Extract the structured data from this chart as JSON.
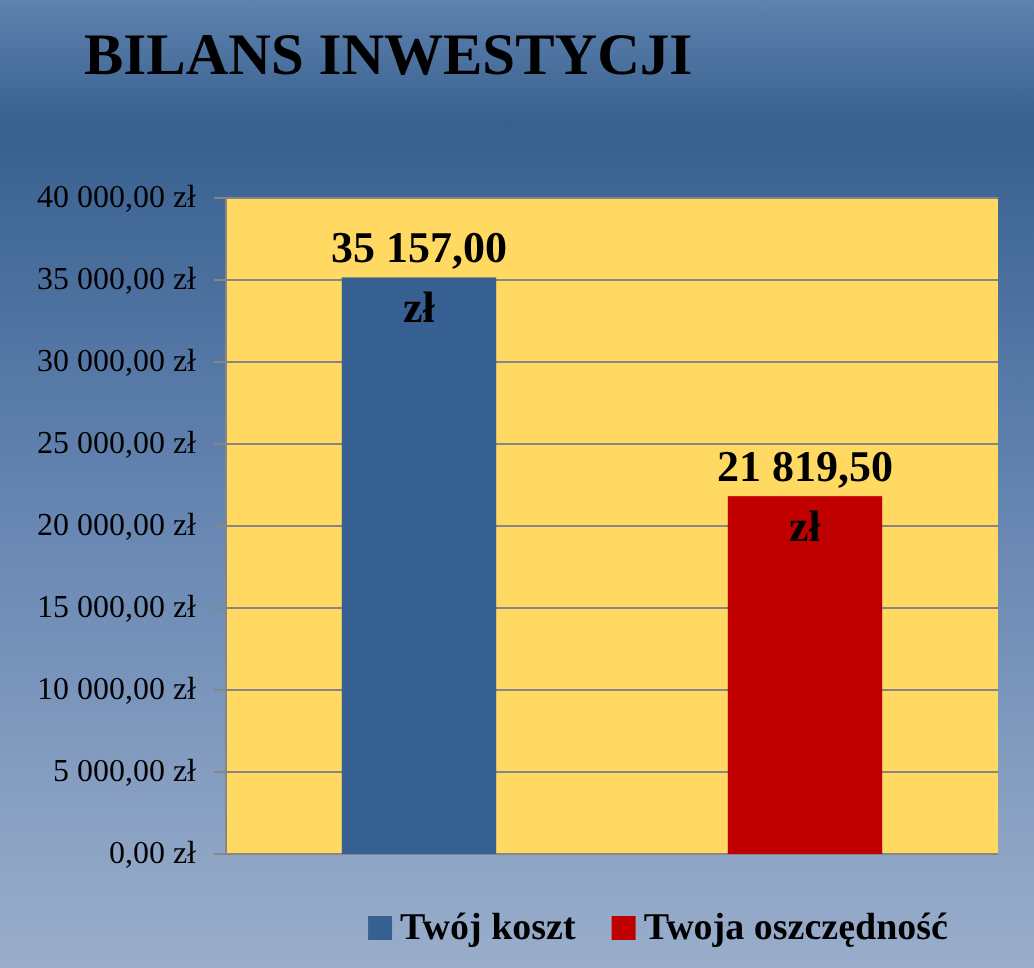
{
  "chart_data": {
    "type": "bar",
    "title": "BILANS INWESTYCJI",
    "categories": [
      null,
      null
    ],
    "series": [
      {
        "name": "Twój koszt",
        "color": "#376092",
        "values": [
          35157,
          null
        ],
        "value_labels": [
          "35 157,00 zł",
          null
        ]
      },
      {
        "name": "Twoja oszczędność",
        "color": "#c00000",
        "values": [
          null,
          21819.5
        ],
        "value_labels": [
          null,
          "21 819,50 zł"
        ]
      }
    ],
    "ylim": [
      0,
      40000
    ],
    "yticks": [
      {
        "value": 0,
        "label": "0,00 zł"
      },
      {
        "value": 5000,
        "label": "5 000,00 zł"
      },
      {
        "value": 10000,
        "label": "10 000,00 zł"
      },
      {
        "value": 15000,
        "label": "15 000,00 zł"
      },
      {
        "value": 20000,
        "label": "20 000,00 zł"
      },
      {
        "value": 25000,
        "label": "25 000,00 zł"
      },
      {
        "value": 30000,
        "label": "30 000,00 zł"
      },
      {
        "value": 35000,
        "label": "35 000,00 zł"
      },
      {
        "value": 40000,
        "label": "40 000,00 zł"
      }
    ],
    "grid": "y",
    "legend": "bottom",
    "tick_labels": "y"
  }
}
